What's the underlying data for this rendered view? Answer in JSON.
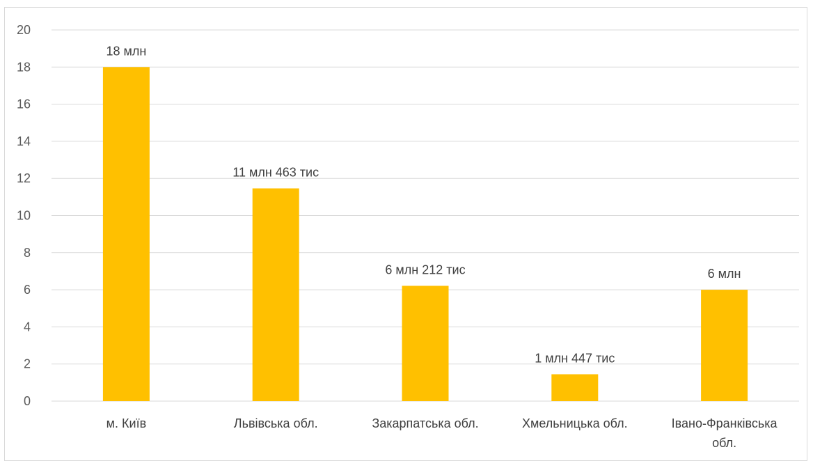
{
  "chart_data": {
    "type": "bar",
    "title": "",
    "xlabel": "",
    "ylabel": "",
    "categories": [
      "м. Київ",
      "Львівська обл.",
      "Закарпатська обл.",
      "Хмельницька обл.",
      "Івано-Франківська обл."
    ],
    "category_lines": [
      [
        "м. Київ"
      ],
      [
        "Львівська обл."
      ],
      [
        "Закарпатська обл."
      ],
      [
        "Хмельницька обл."
      ],
      [
        "Івано-Франківська",
        "обл."
      ]
    ],
    "values": [
      18,
      11.463,
      6.212,
      1.447,
      6
    ],
    "data_labels": [
      "18 млн",
      "11 млн 463 тис",
      "6 млн 212 тис",
      "1 млн 447 тис",
      "6 млн"
    ],
    "yticks": [
      0,
      2,
      4,
      6,
      8,
      10,
      12,
      14,
      16,
      18,
      20
    ],
    "ylim": [
      0,
      20
    ],
    "grid": true,
    "legend": "none",
    "colors": {
      "bar": "#FFC000",
      "grid": "#d9d9d9",
      "axis_text": "#595959",
      "label_text": "#404040"
    }
  }
}
